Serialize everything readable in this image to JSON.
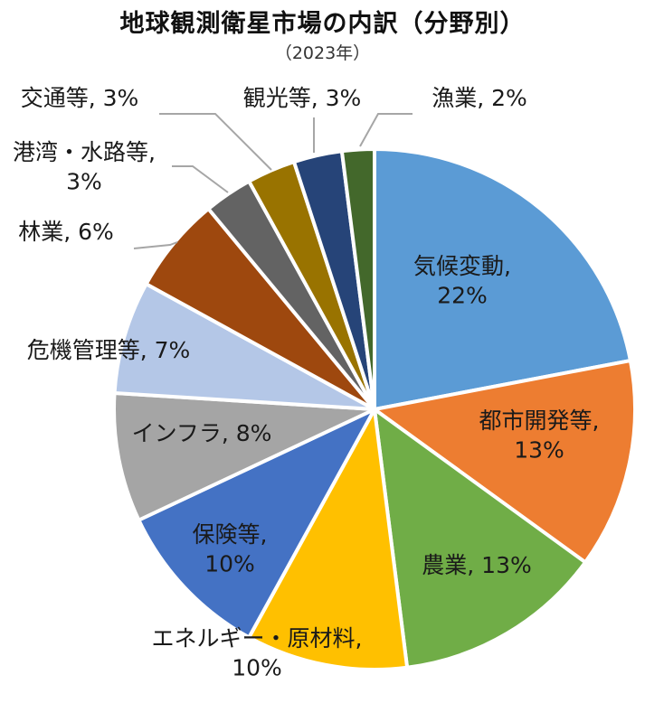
{
  "chart_data": {
    "type": "pie",
    "title": "地球観測衛星市場の内訳（分野別）",
    "subtitle": "（2023年）",
    "categories": [
      "気候変動",
      "都市開発等",
      "農業",
      "エネルギー・原材料",
      "保険等",
      "インフラ",
      "危機管理等",
      "林業",
      "港湾・水路等",
      "交通等",
      "観光等",
      "漁業"
    ],
    "values": [
      22,
      13,
      13,
      10,
      10,
      8,
      7,
      6,
      3,
      3,
      3,
      2
    ],
    "value_labels": [
      "22%",
      "13%",
      "13%",
      "10%",
      "10%",
      "8%",
      "7%",
      "6%",
      "3%",
      "3%",
      "3%",
      "2%"
    ],
    "colors": [
      "#5B9BD5",
      "#ED7D31",
      "#70AD47",
      "#FFC000",
      "#4472C4",
      "#A5A5A5",
      "#B4C7E7",
      "#9E480E",
      "#636363",
      "#997300",
      "#264478",
      "#43682B"
    ],
    "start_angle": "12 o'clock",
    "direction": "clockwise",
    "legend": "none",
    "data_labels": "category name and value"
  }
}
